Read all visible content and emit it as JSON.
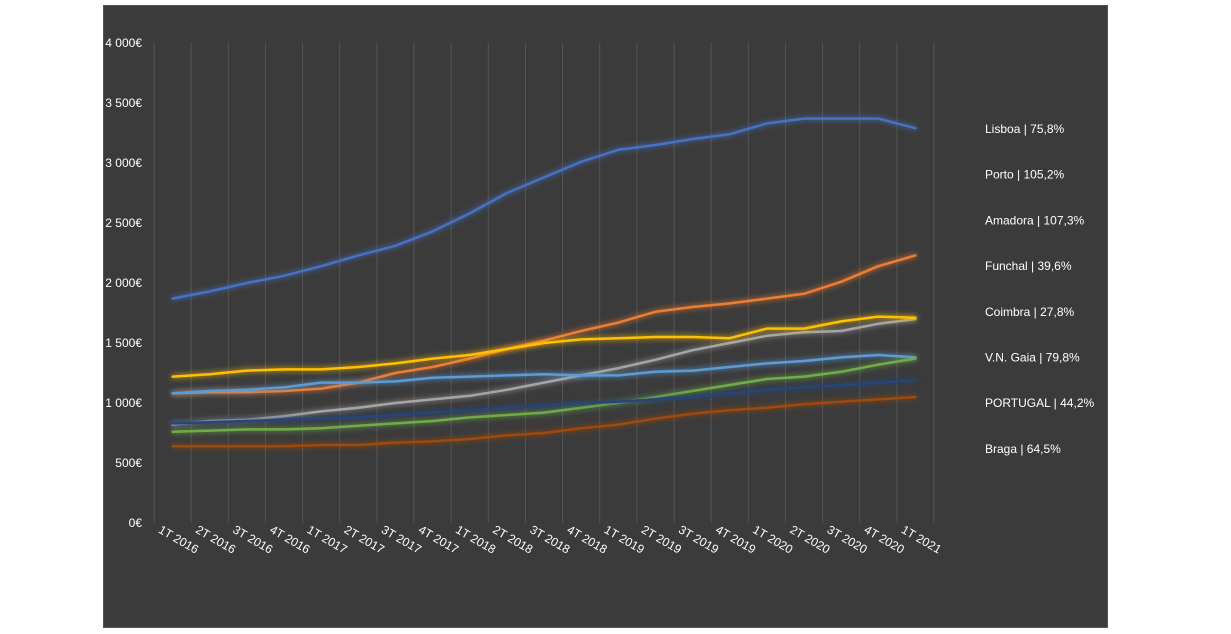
{
  "chart_data": {
    "type": "line",
    "title": "",
    "xlabel": "",
    "ylabel": "",
    "ylim": [
      0,
      4000
    ],
    "y_ticks": [
      0,
      500,
      1000,
      1500,
      2000,
      2500,
      3000,
      3500,
      4000
    ],
    "y_tick_labels": [
      "0€",
      "500€",
      "1 000€",
      "1 500€",
      "2 000€",
      "2 500€",
      "3 000€",
      "3 500€",
      "4 000€"
    ],
    "grid": "vertical",
    "legend_position": "right",
    "categories": [
      "1T 2016",
      "2T 2016",
      "3T 2016",
      "4T 2016",
      "1T 2017",
      "2T 2017",
      "3T 2017",
      "4T 2017",
      "1T 2018",
      "2T 2018",
      "3T 2018",
      "4T 2018",
      "1T 2019",
      "2T 2019",
      "3T 2019",
      "4T 2019",
      "1T 2020",
      "2T 2020",
      "3T 2020",
      "4T 2020",
      "1T 2021"
    ],
    "series": [
      {
        "name": "Lisboa | 75,8%",
        "color": "#4472c4",
        "values": [
          1870,
          1930,
          2000,
          2060,
          2140,
          2230,
          2310,
          2430,
          2580,
          2750,
          2880,
          3010,
          3110,
          3150,
          3200,
          3240,
          3330,
          3370,
          3370,
          3370,
          3290
        ]
      },
      {
        "name": "Porto | 105,2%",
        "color": "#ed7d31",
        "values": [
          1080,
          1090,
          1090,
          1100,
          1120,
          1170,
          1250,
          1300,
          1370,
          1450,
          1520,
          1600,
          1670,
          1760,
          1800,
          1830,
          1870,
          1910,
          2010,
          2140,
          2230
        ]
      },
      {
        "name": "Amadora | 107,3%",
        "color": "#a5a5a5",
        "values": [
          820,
          850,
          860,
          890,
          930,
          960,
          1000,
          1030,
          1060,
          1110,
          1170,
          1230,
          1290,
          1360,
          1440,
          1500,
          1560,
          1590,
          1600,
          1660,
          1700
        ]
      },
      {
        "name": "Funchal | 39,6%",
        "color": "#ffc000",
        "values": [
          1220,
          1240,
          1270,
          1280,
          1280,
          1300,
          1330,
          1370,
          1400,
          1450,
          1500,
          1530,
          1540,
          1550,
          1550,
          1540,
          1620,
          1620,
          1680,
          1720,
          1710
        ]
      },
      {
        "name": "Coimbra | 27,8%",
        "color": "#5b9bd5",
        "values": [
          1080,
          1100,
          1110,
          1130,
          1170,
          1170,
          1180,
          1210,
          1220,
          1230,
          1240,
          1230,
          1230,
          1260,
          1270,
          1300,
          1330,
          1350,
          1380,
          1400,
          1380
        ]
      },
      {
        "name": "V.N. Gaia | 79,8%",
        "color": "#70ad47",
        "values": [
          760,
          770,
          780,
          780,
          790,
          810,
          830,
          850,
          880,
          900,
          920,
          960,
          1000,
          1050,
          1100,
          1150,
          1200,
          1220,
          1260,
          1320,
          1370
        ]
      },
      {
        "name": "PORTUGAL | 44,2%",
        "color": "#264478",
        "values": [
          830,
          840,
          850,
          860,
          870,
          880,
          900,
          920,
          940,
          960,
          980,
          1000,
          1010,
          1030,
          1050,
          1080,
          1110,
          1130,
          1150,
          1170,
          1190
        ]
      },
      {
        "name": "Braga | 64,5%",
        "color": "#9e480e",
        "values": [
          640,
          640,
          640,
          640,
          650,
          650,
          670,
          680,
          700,
          730,
          750,
          790,
          820,
          870,
          910,
          940,
          960,
          990,
          1010,
          1030,
          1050
        ]
      }
    ]
  }
}
